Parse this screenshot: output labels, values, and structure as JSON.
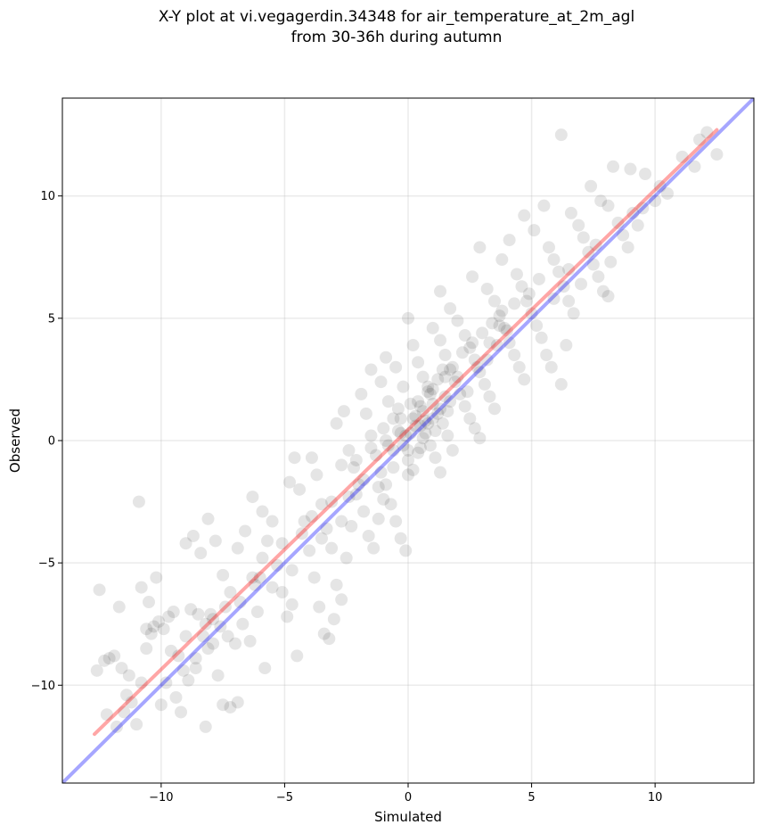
{
  "chart_data": {
    "type": "scatter",
    "title_line1": "X-Y plot at vi.vegagerdin.34348 for air_temperature_at_2m_agl",
    "title_line2": "from 30-36h during autumn",
    "xlabel": "Simulated",
    "ylabel": "Observed",
    "xlim": [
      -14,
      14
    ],
    "ylim": [
      -14,
      14
    ],
    "xticks": [
      -10,
      -5,
      0,
      5,
      10
    ],
    "yticks": [
      -10,
      -5,
      0,
      5,
      10
    ],
    "xtick_labels": [
      "−10",
      "−5",
      "0",
      "5",
      "10"
    ],
    "ytick_labels": [
      "−10",
      "−5",
      "0",
      "5",
      "10"
    ],
    "grid": true,
    "identity_line": {
      "x": [
        -14,
        14
      ],
      "y": [
        -14,
        14
      ],
      "color": "#0000ff"
    },
    "fit_line": {
      "x": [
        -12.7,
        12.5
      ],
      "y": [
        -12.0,
        12.7
      ],
      "color": "#ff0000"
    },
    "point_color": "#000000",
    "points_estimated": [
      [
        -12.5,
        -6.1
      ],
      [
        -12.3,
        -9.0
      ],
      [
        -12.1,
        -8.9
      ],
      [
        -11.9,
        -8.8
      ],
      [
        -11.6,
        -9.3
      ],
      [
        -11.3,
        -9.6
      ],
      [
        -12.6,
        -9.4
      ],
      [
        -12.2,
        -11.2
      ],
      [
        -11.8,
        -11.7
      ],
      [
        -11.5,
        -11.1
      ],
      [
        -11.2,
        -10.7
      ],
      [
        -11.0,
        -11.6
      ],
      [
        -10.8,
        -6.0
      ],
      [
        -10.6,
        -7.7
      ],
      [
        -10.4,
        -7.9
      ],
      [
        -10.3,
        -7.6
      ],
      [
        -10.1,
        -7.4
      ],
      [
        -9.9,
        -7.7
      ],
      [
        -9.7,
        -7.2
      ],
      [
        -10.9,
        -2.5
      ],
      [
        -11.7,
        -6.8
      ],
      [
        -10.5,
        -6.6
      ],
      [
        -10.2,
        -5.6
      ],
      [
        -9.5,
        -7.0
      ],
      [
        -9.3,
        -8.8
      ],
      [
        -9.1,
        -9.4
      ],
      [
        -9.8,
        -9.9
      ],
      [
        -10.0,
        -10.8
      ],
      [
        -9.4,
        -10.5
      ],
      [
        -9.2,
        -11.1
      ],
      [
        -8.9,
        -9.8
      ],
      [
        -8.6,
        -9.3
      ],
      [
        -8.3,
        -8.0
      ],
      [
        -8.1,
        -8.5
      ],
      [
        -7.9,
        -8.3
      ],
      [
        -7.7,
        -9.6
      ],
      [
        -7.5,
        -10.8
      ],
      [
        -7.2,
        -10.9
      ],
      [
        -6.9,
        -10.7
      ],
      [
        -8.2,
        -11.7
      ],
      [
        -9.0,
        -4.2
      ],
      [
        -8.7,
        -3.9
      ],
      [
        -8.4,
        -4.6
      ],
      [
        -8.1,
        -3.2
      ],
      [
        -7.8,
        -4.1
      ],
      [
        -7.5,
        -5.5
      ],
      [
        -7.2,
        -6.2
      ],
      [
        -6.9,
        -4.4
      ],
      [
        -6.6,
        -3.7
      ],
      [
        -6.3,
        -2.3
      ],
      [
        -8.8,
        -6.9
      ],
      [
        -8.5,
        -7.1
      ],
      [
        -8.2,
        -7.5
      ],
      [
        -7.9,
        -7.3
      ],
      [
        -7.6,
        -7.6
      ],
      [
        -7.3,
        -8.0
      ],
      [
        -7.0,
        -8.3
      ],
      [
        -6.7,
        -7.5
      ],
      [
        -6.4,
        -8.2
      ],
      [
        -6.1,
        -7.0
      ],
      [
        -5.9,
        -2.9
      ],
      [
        -5.7,
        -4.1
      ],
      [
        -5.5,
        -3.3
      ],
      [
        -5.3,
        -5.1
      ],
      [
        -5.1,
        -6.2
      ],
      [
        -4.9,
        -7.2
      ],
      [
        -4.7,
        -6.7
      ],
      [
        -4.5,
        -8.8
      ],
      [
        -5.8,
        -9.3
      ],
      [
        -6.0,
        -5.6
      ],
      [
        -4.8,
        -1.7
      ],
      [
        -4.6,
        -0.7
      ],
      [
        -4.4,
        -2.0
      ],
      [
        -4.2,
        -3.3
      ],
      [
        -4.0,
        -4.5
      ],
      [
        -3.8,
        -5.6
      ],
      [
        -3.6,
        -6.8
      ],
      [
        -3.4,
        -7.9
      ],
      [
        -3.2,
        -8.1
      ],
      [
        -3.0,
        -7.3
      ],
      [
        -3.9,
        -0.7
      ],
      [
        -3.7,
        -1.4
      ],
      [
        -3.5,
        -2.6
      ],
      [
        -3.3,
        -3.6
      ],
      [
        -3.1,
        -4.4
      ],
      [
        -2.9,
        -5.9
      ],
      [
        -2.7,
        -6.5
      ],
      [
        -2.5,
        -4.8
      ],
      [
        -2.3,
        -3.5
      ],
      [
        -2.1,
        -2.2
      ],
      [
        -2.9,
        0.7
      ],
      [
        -2.6,
        1.2
      ],
      [
        -2.4,
        -0.4
      ],
      [
        -2.2,
        -1.1
      ],
      [
        -2.0,
        -1.8
      ],
      [
        -1.8,
        -2.9
      ],
      [
        -1.6,
        -3.9
      ],
      [
        -1.4,
        -4.4
      ],
      [
        -1.2,
        -3.2
      ],
      [
        -1.0,
        -2.4
      ],
      [
        -1.9,
        1.9
      ],
      [
        -1.7,
        1.1
      ],
      [
        -1.5,
        0.2
      ],
      [
        -1.3,
        -0.6
      ],
      [
        -1.1,
        -1.3
      ],
      [
        -0.9,
        -1.8
      ],
      [
        -0.7,
        -2.6
      ],
      [
        -0.5,
        -3.3
      ],
      [
        -0.3,
        -4.0
      ],
      [
        -0.1,
        -4.5
      ],
      [
        -1.5,
        2.9
      ],
      [
        -1.1,
        2.4
      ],
      [
        -0.8,
        1.6
      ],
      [
        -0.6,
        0.9
      ],
      [
        -0.4,
        0.4
      ],
      [
        -0.2,
        -0.2
      ],
      [
        0.0,
        -0.8
      ],
      [
        0.2,
        -1.2
      ],
      [
        0.4,
        -0.5
      ],
      [
        0.6,
        0.1
      ],
      [
        -0.9,
        3.4
      ],
      [
        -0.5,
        3.0
      ],
      [
        -0.2,
        2.2
      ],
      [
        0.1,
        1.5
      ],
      [
        0.3,
        1.0
      ],
      [
        0.5,
        0.6
      ],
      [
        0.7,
        0.3
      ],
      [
        0.9,
        -0.2
      ],
      [
        1.1,
        -0.7
      ],
      [
        1.3,
        -1.3
      ],
      [
        0.0,
        5.0
      ],
      [
        0.2,
        3.9
      ],
      [
        0.4,
        3.2
      ],
      [
        0.6,
        2.6
      ],
      [
        0.8,
        2.0
      ],
      [
        1.0,
        1.5
      ],
      [
        1.2,
        1.1
      ],
      [
        1.4,
        0.7
      ],
      [
        1.6,
        0.2
      ],
      [
        1.8,
        -0.4
      ],
      [
        1.0,
        4.6
      ],
      [
        1.3,
        4.1
      ],
      [
        1.5,
        3.5
      ],
      [
        1.7,
        2.9
      ],
      [
        1.9,
        2.4
      ],
      [
        2.1,
        1.9
      ],
      [
        2.3,
        1.4
      ],
      [
        2.5,
        0.9
      ],
      [
        2.7,
        0.5
      ],
      [
        2.9,
        0.1
      ],
      [
        1.3,
        6.1
      ],
      [
        1.7,
        5.4
      ],
      [
        2.0,
        4.9
      ],
      [
        2.3,
        4.3
      ],
      [
        2.5,
        3.8
      ],
      [
        2.7,
        3.3
      ],
      [
        2.9,
        2.8
      ],
      [
        3.1,
        2.3
      ],
      [
        3.3,
        1.8
      ],
      [
        3.5,
        1.3
      ],
      [
        2.6,
        6.7
      ],
      [
        2.9,
        7.9
      ],
      [
        3.2,
        6.2
      ],
      [
        3.5,
        5.7
      ],
      [
        3.7,
        5.1
      ],
      [
        3.9,
        4.6
      ],
      [
        4.1,
        4.0
      ],
      [
        4.3,
        3.5
      ],
      [
        4.5,
        3.0
      ],
      [
        4.7,
        2.5
      ],
      [
        3.8,
        7.4
      ],
      [
        4.1,
        8.2
      ],
      [
        4.4,
        6.8
      ],
      [
        4.6,
        6.3
      ],
      [
        4.8,
        5.7
      ],
      [
        5.0,
        5.2
      ],
      [
        5.2,
        4.7
      ],
      [
        5.4,
        4.2
      ],
      [
        5.6,
        3.5
      ],
      [
        5.8,
        3.0
      ],
      [
        4.7,
        9.2
      ],
      [
        5.1,
        8.6
      ],
      [
        5.5,
        9.6
      ],
      [
        5.7,
        7.9
      ],
      [
        5.9,
        7.4
      ],
      [
        6.1,
        6.9
      ],
      [
        6.3,
        6.3
      ],
      [
        6.5,
        5.7
      ],
      [
        6.7,
        5.2
      ],
      [
        6.2,
        2.3
      ],
      [
        6.2,
        12.5
      ],
      [
        6.6,
        9.3
      ],
      [
        6.9,
        8.8
      ],
      [
        7.1,
        8.3
      ],
      [
        7.3,
        7.7
      ],
      [
        7.5,
        7.2
      ],
      [
        7.7,
        6.7
      ],
      [
        7.9,
        6.1
      ],
      [
        8.1,
        5.9
      ],
      [
        6.4,
        3.9
      ],
      [
        7.4,
        10.4
      ],
      [
        7.8,
        9.8
      ],
      [
        8.1,
        9.6
      ],
      [
        8.3,
        11.2
      ],
      [
        8.5,
        8.9
      ],
      [
        8.7,
        8.4
      ],
      [
        8.9,
        7.9
      ],
      [
        9.1,
        9.3
      ],
      [
        9.3,
        8.8
      ],
      [
        9.5,
        9.5
      ],
      [
        9.0,
        11.1
      ],
      [
        9.6,
        10.9
      ],
      [
        10.0,
        9.8
      ],
      [
        10.2,
        10.4
      ],
      [
        10.5,
        10.1
      ],
      [
        11.1,
        11.6
      ],
      [
        11.6,
        11.2
      ],
      [
        11.8,
        12.3
      ],
      [
        12.1,
        12.6
      ],
      [
        12.5,
        11.7
      ],
      [
        -1.0,
        0.5
      ],
      [
        -0.6,
        -0.4
      ],
      [
        -0.3,
        0.9
      ],
      [
        0.1,
        0.3
      ],
      [
        0.4,
        1.6
      ],
      [
        0.7,
        0.8
      ],
      [
        0.9,
        1.9
      ],
      [
        1.2,
        2.5
      ],
      [
        1.5,
        1.8
      ],
      [
        1.8,
        3.0
      ],
      [
        -0.8,
        -0.2
      ],
      [
        -0.4,
        1.3
      ],
      [
        0.0,
        -0.4
      ],
      [
        0.3,
        0.6
      ],
      [
        0.6,
        1.2
      ],
      [
        0.8,
        2.2
      ],
      [
        1.1,
        0.4
      ],
      [
        1.4,
        2.9
      ],
      [
        1.6,
        1.2
      ],
      [
        2.0,
        2.6
      ],
      [
        2.2,
        3.6
      ],
      [
        2.4,
        2.0
      ],
      [
        2.6,
        4.0
      ],
      [
        2.8,
        3.0
      ],
      [
        3.0,
        4.4
      ],
      [
        3.2,
        3.3
      ],
      [
        3.4,
        4.8
      ],
      [
        3.6,
        3.9
      ],
      [
        3.8,
        5.3
      ],
      [
        4.0,
        4.5
      ],
      [
        -2.7,
        -1.0
      ],
      [
        -2.4,
        -2.3
      ],
      [
        -2.1,
        -0.8
      ],
      [
        -1.8,
        -1.6
      ],
      [
        -1.5,
        -0.3
      ],
      [
        -1.2,
        -1.9
      ],
      [
        -0.9,
        0.0
      ],
      [
        -0.6,
        -1.1
      ],
      [
        -0.3,
        0.3
      ],
      [
        0.0,
        -1.4
      ],
      [
        -6.3,
        -5.6
      ],
      [
        -5.9,
        -4.8
      ],
      [
        -5.5,
        -6.0
      ],
      [
        -5.1,
        -4.2
      ],
      [
        -4.7,
        -5.3
      ],
      [
        -4.3,
        -3.8
      ],
      [
        -3.9,
        -3.1
      ],
      [
        -3.5,
        -4.0
      ],
      [
        -3.1,
        -2.5
      ],
      [
        -2.7,
        -3.3
      ],
      [
        -9.6,
        -8.6
      ],
      [
        -9.0,
        -8.0
      ],
      [
        -8.6,
        -8.9
      ],
      [
        -8.0,
        -7.1
      ],
      [
        -7.4,
        -6.8
      ],
      [
        -6.8,
        -6.6
      ],
      [
        -6.2,
        -5.9
      ],
      [
        -10.8,
        -9.9
      ],
      [
        -11.4,
        -10.4
      ],
      [
        -10.6,
        -8.5
      ],
      [
        5.3,
        6.6
      ],
      [
        5.9,
        5.8
      ],
      [
        6.5,
        7.0
      ],
      [
        7.0,
        6.4
      ],
      [
        7.6,
        8.0
      ],
      [
        8.2,
        7.3
      ],
      [
        4.9,
        6.0
      ],
      [
        4.3,
        5.6
      ],
      [
        3.7,
        4.7
      ],
      [
        3.3,
        4.0
      ],
      [
        0.5,
        1.4
      ],
      [
        0.8,
        0.7
      ],
      [
        1.0,
        2.1
      ],
      [
        1.3,
        1.3
      ],
      [
        1.5,
        2.6
      ],
      [
        1.7,
        1.6
      ],
      [
        0.2,
        0.9
      ],
      [
        -0.1,
        0.2
      ],
      [
        0.5,
        -0.3
      ],
      [
        1.0,
        0.9
      ]
    ]
  }
}
